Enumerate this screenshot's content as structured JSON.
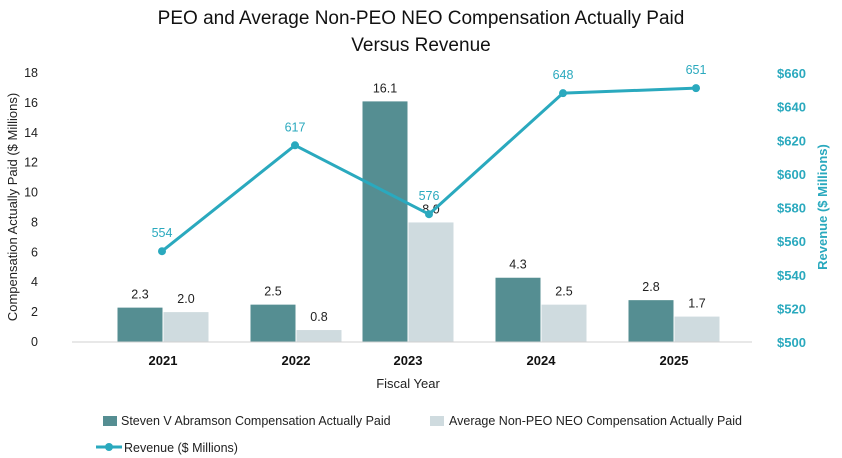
{
  "chart_data": {
    "type": "bar",
    "title": "PEO and Average Non-PEO NEO Compensation Actually Paid",
    "subtitle": "Versus Revenue",
    "xlabel": "Fiscal Year",
    "ylabel": "Compensation Actually Paid ($ Millions)",
    "y2label": "Revenue ($ Millions)",
    "categories": [
      "2021",
      "2022",
      "2023",
      "2024",
      "2025"
    ],
    "ylim": [
      0,
      18
    ],
    "yticks": [
      0,
      2,
      4,
      6,
      8,
      10,
      12,
      14,
      16,
      18
    ],
    "y2lim": [
      500,
      660
    ],
    "y2ticks": [
      "$500",
      "$520",
      "$540",
      "$560",
      "$580",
      "$600",
      "$620",
      "$640",
      "$660"
    ],
    "y2tick_values": [
      500,
      520,
      540,
      560,
      580,
      600,
      620,
      640,
      660
    ],
    "grid": false,
    "legend_position": "bottom",
    "series": [
      {
        "name": "Steven V Abramson Compensation Actually Paid",
        "type": "bar",
        "axis": "left",
        "color": "#558e92",
        "values": [
          2.3,
          2.5,
          16.1,
          4.3,
          2.8
        ],
        "labels": [
          "2.3",
          "2.5",
          "16.1",
          "4.3",
          "2.8"
        ]
      },
      {
        "name": "Average Non-PEO NEO Compensation Actually Paid",
        "type": "bar",
        "axis": "left",
        "color": "#cfdbdf",
        "values": [
          2.0,
          0.8,
          8.0,
          2.5,
          1.7
        ],
        "labels": [
          "2.0",
          "0.8",
          "8.0",
          "2.5",
          "1.7"
        ]
      },
      {
        "name": "Revenue ($ Millions)",
        "type": "line",
        "axis": "right",
        "color": "#2aa9be",
        "values": [
          554,
          617,
          576,
          648,
          651
        ],
        "labels": [
          "554",
          "617",
          "576",
          "648",
          "651"
        ]
      }
    ]
  }
}
